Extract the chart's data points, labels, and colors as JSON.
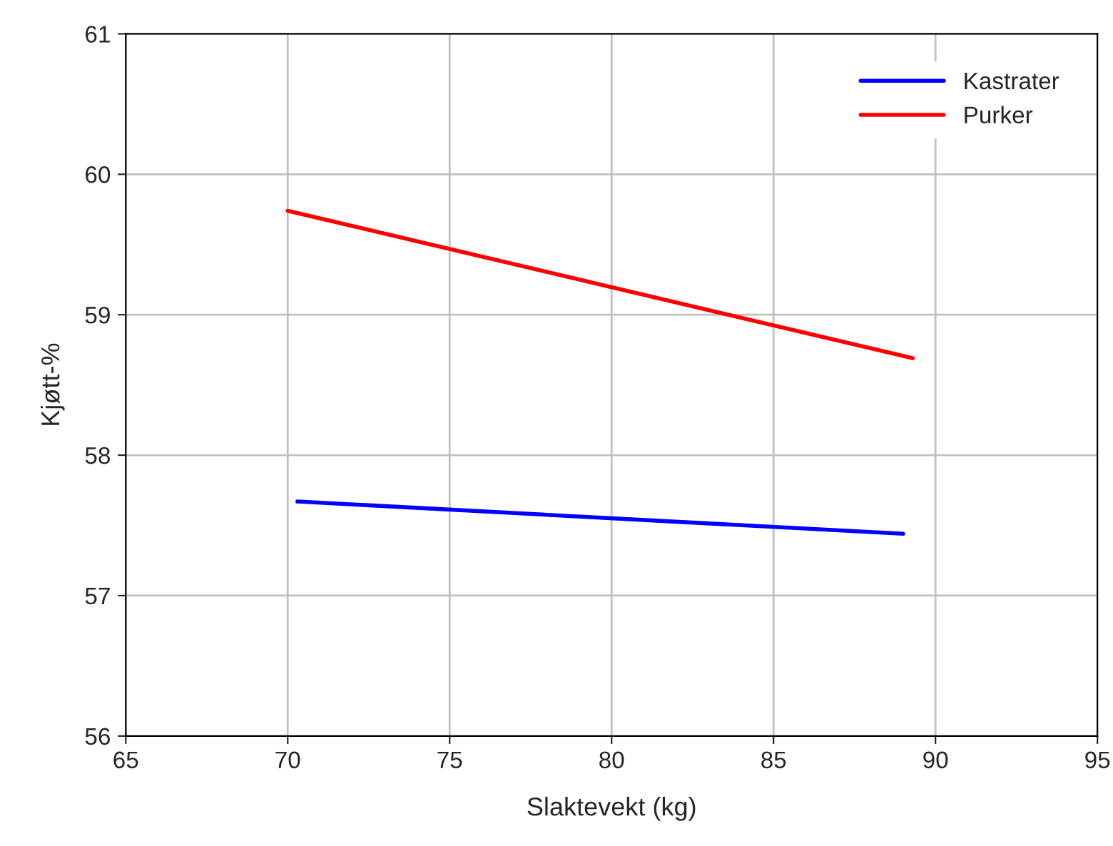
{
  "chart_data": {
    "type": "line",
    "xlabel": "Slaktevekt (kg)",
    "ylabel": "Kjøtt-%",
    "series": [
      {
        "name": "Kastrater",
        "color": "#0000ff",
        "x": [
          70.3,
          89.0
        ],
        "values": [
          57.67,
          57.44
        ]
      },
      {
        "name": "Purker",
        "color": "#ff0000",
        "x": [
          70.0,
          89.3
        ],
        "values": [
          59.74,
          58.69
        ]
      }
    ],
    "xlim": [
      65,
      95
    ],
    "xticks": [
      65,
      70,
      75,
      80,
      85,
      90,
      95
    ],
    "ylim": [
      56,
      61
    ],
    "yticks": [
      56,
      57,
      58,
      59,
      60,
      61
    ],
    "grid": true,
    "legend": "top right"
  }
}
